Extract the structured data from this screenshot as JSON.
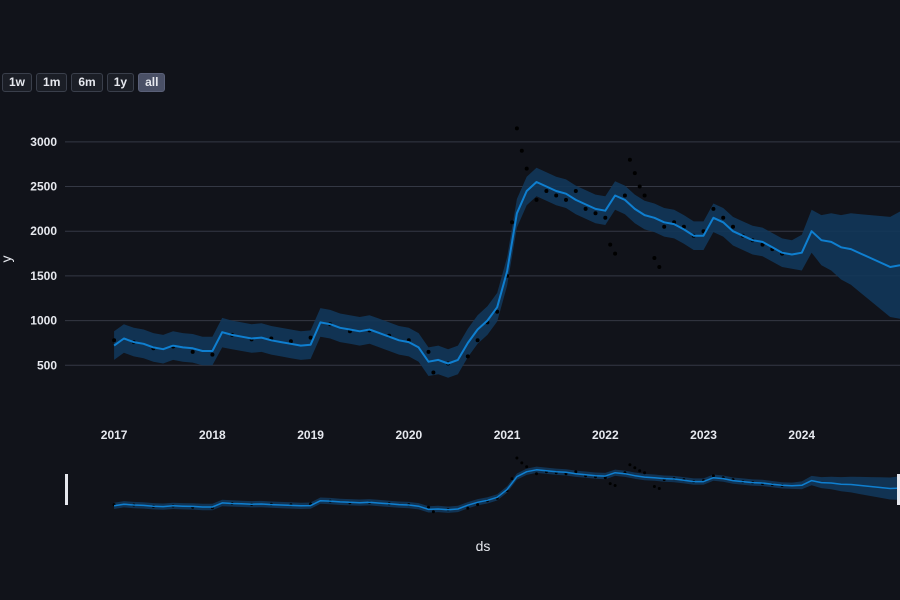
{
  "range_buttons": [
    {
      "label": "1w",
      "active": false
    },
    {
      "label": "1m",
      "active": false
    },
    {
      "label": "6m",
      "active": false
    },
    {
      "label": "1y",
      "active": false
    },
    {
      "label": "all",
      "active": true
    }
  ],
  "colors": {
    "background": "#11131a",
    "forecast_line": "#0f7fd0",
    "uncertainty_band": "#12375a",
    "observed_points": "#000000",
    "gridline": "#343844"
  },
  "chart_data": {
    "type": "line",
    "xlabel": "ds",
    "ylabel": "y",
    "ylim": [
      0,
      3300
    ],
    "xlim": [
      2016.5,
      2025.0
    ],
    "yticks": [
      500,
      1000,
      1500,
      2000,
      2500,
      3000
    ],
    "xticks": [
      2017,
      2018,
      2019,
      2020,
      2021,
      2022,
      2023,
      2024
    ],
    "grid": "horizontal",
    "series": [
      {
        "kind": "forecast",
        "x": [
          2017.0,
          2017.1,
          2017.2,
          2017.3,
          2017.4,
          2017.5,
          2017.6,
          2017.7,
          2017.8,
          2017.9,
          2018.0,
          2018.1,
          2018.2,
          2018.3,
          2018.4,
          2018.5,
          2018.6,
          2018.7,
          2018.8,
          2018.9,
          2019.0,
          2019.1,
          2019.2,
          2019.3,
          2019.4,
          2019.5,
          2019.6,
          2019.7,
          2019.8,
          2019.9,
          2020.0,
          2020.1,
          2020.2,
          2020.3,
          2020.4,
          2020.5,
          2020.6,
          2020.7,
          2020.8,
          2020.9,
          2021.0,
          2021.1,
          2021.2,
          2021.3,
          2021.4,
          2021.5,
          2021.6,
          2021.7,
          2021.8,
          2021.9,
          2022.0,
          2022.1,
          2022.2,
          2022.3,
          2022.4,
          2022.5,
          2022.6,
          2022.7,
          2022.8,
          2022.9,
          2023.0,
          2023.1,
          2023.2,
          2023.3,
          2023.4,
          2023.5,
          2023.6,
          2023.7,
          2023.8,
          2023.9,
          2024.0,
          2024.1,
          2024.2,
          2024.3,
          2024.4,
          2024.5,
          2024.6,
          2024.7,
          2024.8,
          2024.9,
          2025.0
        ],
        "y": [
          720,
          800,
          760,
          740,
          700,
          680,
          720,
          700,
          690,
          660,
          660,
          870,
          840,
          820,
          800,
          810,
          780,
          760,
          740,
          720,
          730,
          980,
          960,
          920,
          900,
          880,
          900,
          860,
          820,
          780,
          760,
          700,
          540,
          560,
          520,
          560,
          750,
          900,
          1000,
          1150,
          1550,
          2200,
          2450,
          2550,
          2500,
          2450,
          2420,
          2350,
          2300,
          2250,
          2230,
          2400,
          2350,
          2250,
          2180,
          2150,
          2100,
          2080,
          2020,
          1950,
          1950,
          2150,
          2100,
          2000,
          1950,
          1900,
          1880,
          1820,
          1760,
          1740,
          1760,
          2000,
          1900,
          1880,
          1820,
          1800,
          1750,
          1700,
          1650,
          1600,
          1620
        ],
        "lower": [
          560,
          640,
          600,
          580,
          540,
          520,
          560,
          540,
          530,
          500,
          500,
          700,
          680,
          660,
          640,
          650,
          620,
          600,
          580,
          560,
          570,
          820,
          800,
          760,
          740,
          720,
          740,
          700,
          660,
          620,
          600,
          540,
          380,
          400,
          360,
          400,
          590,
          740,
          840,
          990,
          1390,
          2040,
          2290,
          2390,
          2340,
          2290,
          2260,
          2190,
          2140,
          2090,
          2070,
          2240,
          2190,
          2090,
          2020,
          1990,
          1940,
          1920,
          1860,
          1790,
          1790,
          1990,
          1940,
          1840,
          1790,
          1740,
          1720,
          1660,
          1600,
          1580,
          1560,
          1760,
          1620,
          1560,
          1460,
          1400,
          1310,
          1220,
          1130,
          1040,
          1020
        ],
        "upper": [
          880,
          960,
          920,
          900,
          860,
          840,
          880,
          860,
          850,
          820,
          820,
          1030,
          1000,
          980,
          960,
          970,
          940,
          920,
          900,
          880,
          890,
          1140,
          1120,
          1080,
          1060,
          1040,
          1060,
          1020,
          980,
          940,
          920,
          860,
          700,
          720,
          680,
          720,
          910,
          1060,
          1160,
          1310,
          1710,
          2360,
          2610,
          2710,
          2660,
          2610,
          2580,
          2510,
          2460,
          2410,
          2390,
          2560,
          2510,
          2410,
          2340,
          2310,
          2260,
          2240,
          2180,
          2110,
          2110,
          2310,
          2260,
          2160,
          2110,
          2060,
          2040,
          1980,
          1920,
          1900,
          1960,
          2240,
          2180,
          2200,
          2180,
          2200,
          2190,
          2180,
          2170,
          2160,
          2220
        ]
      },
      {
        "kind": "observed",
        "x": [
          2017.0,
          2017.2,
          2017.4,
          2017.6,
          2017.8,
          2018.0,
          2018.2,
          2018.4,
          2018.6,
          2018.8,
          2019.0,
          2019.2,
          2019.4,
          2019.6,
          2019.8,
          2020.0,
          2020.2,
          2020.25,
          2020.4,
          2020.6,
          2020.7,
          2020.8,
          2020.9,
          2021.0,
          2021.05,
          2021.1,
          2021.15,
          2021.2,
          2021.3,
          2021.4,
          2021.5,
          2021.6,
          2021.7,
          2021.8,
          2021.9,
          2022.0,
          2022.05,
          2022.1,
          2022.2,
          2022.25,
          2022.3,
          2022.35,
          2022.4,
          2022.5,
          2022.55,
          2022.6,
          2022.7,
          2022.8,
          2022.9,
          2023.0,
          2023.1,
          2023.2,
          2023.3,
          2023.4,
          2023.5,
          2023.6,
          2023.7,
          2023.8
        ],
        "y": [
          780,
          760,
          690,
          710,
          650,
          620,
          840,
          790,
          800,
          770,
          810,
          960,
          880,
          890,
          830,
          780,
          650,
          420,
          520,
          600,
          780,
          980,
          1100,
          1500,
          2100,
          3150,
          2900,
          2700,
          2350,
          2450,
          2400,
          2350,
          2450,
          2250,
          2200,
          2150,
          1850,
          1750,
          2400,
          2800,
          2650,
          2500,
          2400,
          1700,
          1600,
          2050,
          2100,
          2050,
          1950,
          2000,
          2250,
          2150,
          2050,
          1950,
          1900,
          1850,
          1800,
          1750
        ]
      }
    ]
  }
}
